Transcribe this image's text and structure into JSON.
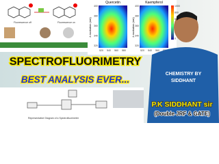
{
  "top_left": {
    "labels": [
      "Fluorescence off",
      "Fluorescence on"
    ]
  },
  "heatmaps": [
    {
      "title": "Quercetin",
      "y_label": "λ excitation (nm)",
      "y_ticks": [
        "400",
        "380",
        "360",
        "340",
        "320"
      ],
      "x_ticks": [
        "520",
        "540",
        "560",
        "580"
      ]
    },
    {
      "title": "Kaempferol",
      "y_label": "λ excitation (nm)",
      "y_ticks": [
        "400",
        "380",
        "360",
        "340",
        "320"
      ],
      "x_ticks": [
        "520",
        "540",
        "560",
        "580"
      ],
      "colorbar_ticks": [
        "1000",
        "800",
        "600",
        "400",
        "200",
        "0"
      ]
    }
  ],
  "title": "SPECTROFLUORIMETRY",
  "subtitle": "BEST ANALYSIS EVER...",
  "diagram_caption": "Representative Diagram of a Spectrofluorimeter",
  "shirt_text": [
    "CHEMISTRY BY",
    "SIDDHANT"
  ],
  "presenter": "P.K SIDDHANT sir",
  "credentials": "(Double JRF & GATE)"
}
